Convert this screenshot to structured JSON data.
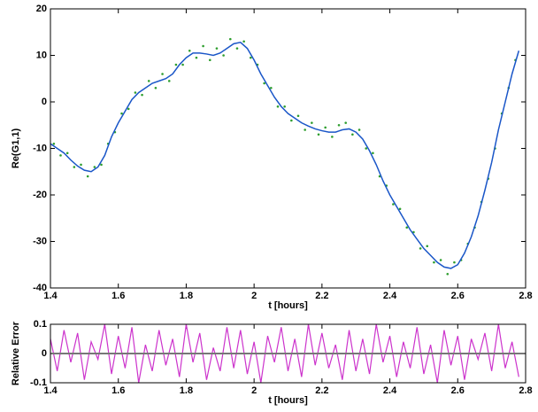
{
  "chart_data": [
    {
      "type": "line",
      "ylabel": "Re(G1,1)",
      "xlabel": "t [hours]",
      "xlim": [
        1.4,
        2.8
      ],
      "xticks": [
        1.4,
        1.6,
        1.8,
        2,
        2.2,
        2.4,
        2.6,
        2.8
      ],
      "ylim": [
        -40,
        20
      ],
      "yticks": [
        -40,
        -30,
        -20,
        -10,
        0,
        10,
        20
      ],
      "series": [
        {
          "type": "scatter",
          "color": "#2e9e2e",
          "x": [
            1.41,
            1.43,
            1.45,
            1.47,
            1.49,
            1.51,
            1.53,
            1.55,
            1.57,
            1.59,
            1.61,
            1.63,
            1.65,
            1.67,
            1.69,
            1.71,
            1.73,
            1.75,
            1.77,
            1.79,
            1.81,
            1.83,
            1.85,
            1.87,
            1.89,
            1.91,
            1.93,
            1.95,
            1.97,
            1.99,
            2.01,
            2.03,
            2.05,
            2.07,
            2.09,
            2.11,
            2.13,
            2.15,
            2.17,
            2.19,
            2.21,
            2.23,
            2.25,
            2.27,
            2.29,
            2.31,
            2.33,
            2.35,
            2.37,
            2.39,
            2.41,
            2.43,
            2.45,
            2.47,
            2.49,
            2.51,
            2.53,
            2.55,
            2.57,
            2.59,
            2.61,
            2.63,
            2.65,
            2.67,
            2.69,
            2.71,
            2.73,
            2.75,
            2.77
          ],
          "values": [
            -9,
            -11.5,
            -11,
            -14,
            -13.5,
            -16,
            -14,
            -13.5,
            -9,
            -6.5,
            -2.5,
            -1.5,
            2,
            1.5,
            4.5,
            3,
            6,
            4.5,
            8,
            8,
            11,
            9.5,
            12,
            9,
            11.5,
            10,
            13.5,
            11.5,
            13,
            9.5,
            8,
            4,
            3,
            -1,
            -1,
            -4,
            -3,
            -6,
            -4.5,
            -7,
            -5.5,
            -7.5,
            -5,
            -4.5,
            -7,
            -6,
            -10,
            -11,
            -16,
            -18,
            -22,
            -23,
            -27,
            -28,
            -31.5,
            -31,
            -34.5,
            -34,
            -37,
            -34.5,
            -34,
            -30.5,
            -27,
            -21.5,
            -16.5,
            -10,
            -2.5,
            3,
            9
          ]
        },
        {
          "type": "line",
          "color": "#1a56c8",
          "x": [
            1.4,
            1.42,
            1.44,
            1.46,
            1.48,
            1.5,
            1.52,
            1.54,
            1.56,
            1.58,
            1.6,
            1.62,
            1.64,
            1.66,
            1.68,
            1.7,
            1.72,
            1.74,
            1.76,
            1.78,
            1.8,
            1.82,
            1.84,
            1.86,
            1.88,
            1.9,
            1.92,
            1.94,
            1.96,
            1.98,
            2,
            2.02,
            2.04,
            2.06,
            2.08,
            2.1,
            2.12,
            2.14,
            2.16,
            2.18,
            2.2,
            2.22,
            2.24,
            2.26,
            2.28,
            2.3,
            2.32,
            2.34,
            2.36,
            2.38,
            2.4,
            2.42,
            2.44,
            2.46,
            2.48,
            2.5,
            2.52,
            2.54,
            2.56,
            2.58,
            2.6,
            2.62,
            2.64,
            2.66,
            2.68,
            2.7,
            2.72,
            2.74,
            2.76,
            2.78
          ],
          "values": [
            -9,
            -10,
            -11,
            -12.5,
            -13.8,
            -14.7,
            -15,
            -14,
            -11.5,
            -7.5,
            -4.5,
            -2,
            0.5,
            2,
            3,
            4,
            4.5,
            5,
            6,
            8,
            9.5,
            10.5,
            10.5,
            10.3,
            10,
            10.5,
            11.5,
            12.5,
            12.8,
            11.5,
            9,
            6,
            3.5,
            1,
            -1,
            -2.5,
            -3.5,
            -4.5,
            -5.2,
            -5.8,
            -6.2,
            -6.5,
            -6.5,
            -6,
            -5.8,
            -6.5,
            -8,
            -10.5,
            -13.5,
            -17,
            -20,
            -22.5,
            -25,
            -27.5,
            -29.5,
            -31.5,
            -33,
            -34.5,
            -35.5,
            -35.8,
            -35,
            -32.5,
            -29,
            -24.5,
            -19,
            -13,
            -6,
            0,
            6,
            11
          ]
        }
      ]
    },
    {
      "type": "line",
      "ylabel": "Relative Error",
      "xlabel": "t [hours]",
      "xlim": [
        1.4,
        2.8
      ],
      "xticks": [
        1.4,
        1.6,
        1.8,
        2,
        2.2,
        2.4,
        2.6,
        2.8
      ],
      "ylim": [
        -0.1,
        0.1
      ],
      "yticks": [
        -0.1,
        0,
        0.1
      ],
      "series": [
        {
          "type": "line",
          "color": "#cc33cc",
          "x": [
            1.4,
            1.42,
            1.44,
            1.46,
            1.48,
            1.5,
            1.52,
            1.54,
            1.56,
            1.58,
            1.6,
            1.62,
            1.64,
            1.66,
            1.68,
            1.7,
            1.72,
            1.74,
            1.76,
            1.78,
            1.8,
            1.82,
            1.84,
            1.86,
            1.88,
            1.9,
            1.92,
            1.94,
            1.96,
            1.98,
            2,
            2.02,
            2.04,
            2.06,
            2.08,
            2.1,
            2.12,
            2.14,
            2.16,
            2.18,
            2.2,
            2.22,
            2.24,
            2.26,
            2.28,
            2.3,
            2.32,
            2.34,
            2.36,
            2.38,
            2.4,
            2.42,
            2.44,
            2.46,
            2.48,
            2.5,
            2.52,
            2.54,
            2.56,
            2.58,
            2.6,
            2.62,
            2.64,
            2.66,
            2.68,
            2.7,
            2.72,
            2.74,
            2.76,
            2.78
          ],
          "values": [
            0.05,
            -0.06,
            0.08,
            -0.03,
            0.07,
            -0.09,
            0.04,
            -0.02,
            0.1,
            -0.07,
            0.06,
            -0.05,
            0.09,
            -0.1,
            0.03,
            -0.06,
            0.08,
            -0.04,
            0.05,
            -0.08,
            0.1,
            -0.03,
            0.07,
            -0.09,
            0.02,
            -0.06,
            0.09,
            -0.05,
            0.08,
            -0.07,
            0.04,
            -0.1,
            0.06,
            -0.03,
            0.09,
            -0.06,
            0.05,
            -0.08,
            0.1,
            -0.04,
            0.07,
            -0.05,
            0.03,
            -0.09,
            0.08,
            -0.06,
            0.05,
            -0.07,
            0.1,
            -0.03,
            0.06,
            -0.08,
            0.04,
            -0.05,
            0.09,
            -0.07,
            0.03,
            -0.1,
            0.08,
            -0.04,
            0.06,
            -0.09,
            0.05,
            -0.02,
            0.07,
            -0.06,
            0.1,
            -0.05,
            0.04,
            -0.08
          ]
        }
      ]
    }
  ]
}
